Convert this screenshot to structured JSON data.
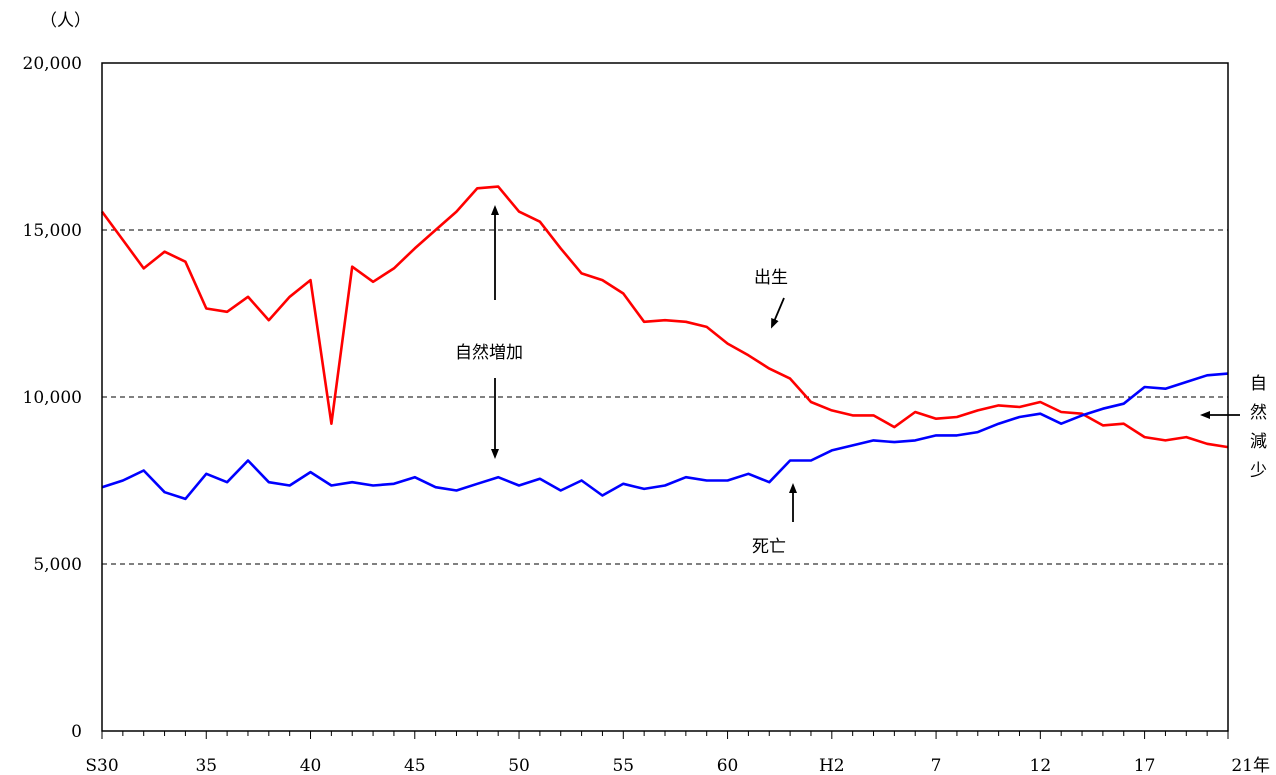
{
  "chart_data": {
    "type": "line",
    "y_unit_label": "（人）",
    "ylim": [
      0,
      20000
    ],
    "y_ticks": [
      "0",
      "5,000",
      "10,000",
      "15,000",
      "20,000"
    ],
    "y_tick_values": [
      0,
      5000,
      10000,
      15000,
      20000
    ],
    "grid": "dashed horizontal lines at 5,000 / 10,000 / 15,000",
    "x_tick_labels": [
      "S30",
      "35",
      "40",
      "45",
      "50",
      "55",
      "60",
      "H2",
      "7",
      "12",
      "17",
      "21年"
    ],
    "x_tick_years": [
      1955,
      1960,
      1965,
      1970,
      1975,
      1980,
      1985,
      1990,
      1995,
      2000,
      2005,
      2009
    ],
    "x_years": [
      1955,
      1956,
      1957,
      1958,
      1959,
      1960,
      1961,
      1962,
      1963,
      1964,
      1965,
      1966,
      1967,
      1968,
      1969,
      1970,
      1971,
      1972,
      1973,
      1974,
      1975,
      1976,
      1977,
      1978,
      1979,
      1980,
      1981,
      1982,
      1983,
      1984,
      1985,
      1986,
      1987,
      1988,
      1989,
      1990,
      1991,
      1992,
      1993,
      1994,
      1995,
      1996,
      1997,
      1998,
      1999,
      2000,
      2001,
      2002,
      2003,
      2004,
      2005,
      2006,
      2007,
      2008,
      2009
    ],
    "series": [
      {
        "name": "出生",
        "color": "#ff0000",
        "values": [
          15550,
          14700,
          13850,
          14350,
          14050,
          12650,
          12550,
          13000,
          12300,
          13000,
          13500,
          9200,
          13900,
          13450,
          13850,
          14450,
          15000,
          15550,
          16250,
          16300,
          15550,
          15250,
          14450,
          13700,
          13500,
          13100,
          12250,
          12300,
          12250,
          12100,
          11600,
          11250,
          10850,
          10550,
          9850,
          9600,
          9450,
          9450,
          9100,
          9550,
          9350,
          9400,
          9600,
          9750,
          9700,
          9850,
          9550,
          9500,
          9150,
          9200,
          8800,
          8700,
          8800,
          8600,
          8500
        ]
      },
      {
        "name": "死亡",
        "color": "#0000ff",
        "values": [
          7300,
          7500,
          7800,
          7150,
          6950,
          7700,
          7450,
          8100,
          7450,
          7350,
          7750,
          7350,
          7450,
          7350,
          7400,
          7600,
          7300,
          7200,
          7400,
          7600,
          7350,
          7550,
          7200,
          7500,
          7050,
          7400,
          7250,
          7350,
          7600,
          7500,
          7500,
          7700,
          7450,
          8100,
          8100,
          8400,
          8550,
          8700,
          8650,
          8700,
          8850,
          8850,
          8950,
          9200,
          9400,
          9500,
          9200,
          9450,
          9650,
          9800,
          10300,
          10250,
          10450,
          10650,
          10700
        ]
      }
    ],
    "annotations": {
      "births": "出生",
      "deaths": "死亡",
      "natural_increase": "自然増加",
      "natural_decrease": [
        "自",
        "然",
        "減",
        "少"
      ]
    }
  }
}
